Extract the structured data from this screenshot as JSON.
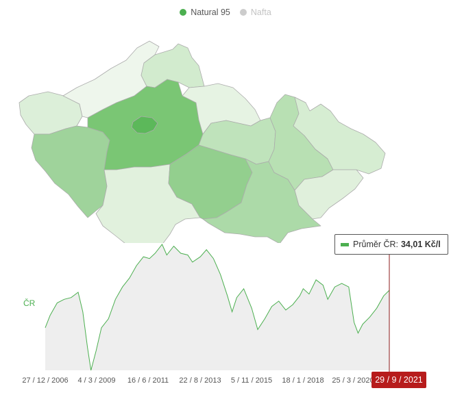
{
  "legend": [
    {
      "label": "Natural 95",
      "color": "#4caf50",
      "active": true
    },
    {
      "label": "Nafta",
      "color": "#cccccc",
      "active": false
    }
  ],
  "map": {
    "icon": "czech-regions-map",
    "regions": [
      {
        "id": "karlovarsky",
        "color": "#dcefd9"
      },
      {
        "id": "plzensky",
        "color": "#9fd39b"
      },
      {
        "id": "ustecky",
        "color": "#eef6ec"
      },
      {
        "id": "liberecky",
        "color": "#d2ebce"
      },
      {
        "id": "stredocesky",
        "color": "#7ac674"
      },
      {
        "id": "praha",
        "color": "#5cb85a"
      },
      {
        "id": "kralovehradecky",
        "color": "#e6f3e3"
      },
      {
        "id": "pardubicky",
        "color": "#bfe3bb"
      },
      {
        "id": "jihocesky",
        "color": "#e1f1dd"
      },
      {
        "id": "vysocina",
        "color": "#93cf8e"
      },
      {
        "id": "jihomoravsky",
        "color": "#acdaa8"
      },
      {
        "id": "olomoucky",
        "color": "#b8e0b3"
      },
      {
        "id": "moravskoslezsky",
        "color": "#d6edd2"
      },
      {
        "id": "zlinsky",
        "color": "#e0f0dc"
      }
    ]
  },
  "chart_data": {
    "type": "area",
    "ylabel": "ČR",
    "xlabels": [
      "27 / 12 / 2006",
      "4 / 3 / 2009",
      "16 / 6 / 2011",
      "22 / 8 / 2013",
      "5 / 11 / 2015",
      "18 / 1 / 2018",
      "25 / 3 / 2020"
    ],
    "selected_date": "29 / 9 / 2021",
    "tooltip": {
      "label": "Průměr ČR:",
      "value": "34,01 Kč/l"
    },
    "x": [
      2006.99,
      2007.2,
      2007.5,
      2007.8,
      2008.1,
      2008.4,
      2008.6,
      2008.8,
      2008.95,
      2009.17,
      2009.4,
      2009.7,
      2010.0,
      2010.3,
      2010.6,
      2010.9,
      2011.2,
      2011.46,
      2011.7,
      2012.0,
      2012.2,
      2012.5,
      2012.8,
      2013.1,
      2013.3,
      2013.64,
      2013.9,
      2014.2,
      2014.5,
      2014.8,
      2015.0,
      2015.2,
      2015.5,
      2015.84,
      2016.1,
      2016.4,
      2016.7,
      2017.0,
      2017.3,
      2017.6,
      2017.9,
      2018.05,
      2018.3,
      2018.6,
      2018.9,
      2019.1,
      2019.4,
      2019.7,
      2020.0,
      2020.23,
      2020.4,
      2020.6,
      2020.9,
      2021.2,
      2021.5,
      2021.74
    ],
    "values": [
      31.9,
      32.6,
      33.3,
      33.5,
      33.6,
      33.9,
      32.8,
      30.8,
      29.5,
      30.6,
      31.9,
      32.4,
      33.5,
      34.2,
      34.7,
      35.4,
      35.9,
      35.8,
      36.1,
      36.6,
      36.0,
      36.5,
      36.1,
      36.0,
      35.6,
      35.9,
      36.3,
      35.8,
      34.9,
      33.7,
      32.8,
      33.6,
      34.1,
      33.0,
      31.8,
      32.4,
      33.1,
      33.4,
      32.9,
      33.2,
      33.7,
      34.1,
      33.8,
      34.6,
      34.3,
      33.5,
      34.2,
      34.4,
      34.2,
      32.2,
      31.6,
      32.1,
      32.5,
      33.0,
      33.7,
      34.01
    ],
    "xlim": [
      2006.99,
      2021.74
    ],
    "ylim": [
      29.5,
      36.6
    ]
  }
}
